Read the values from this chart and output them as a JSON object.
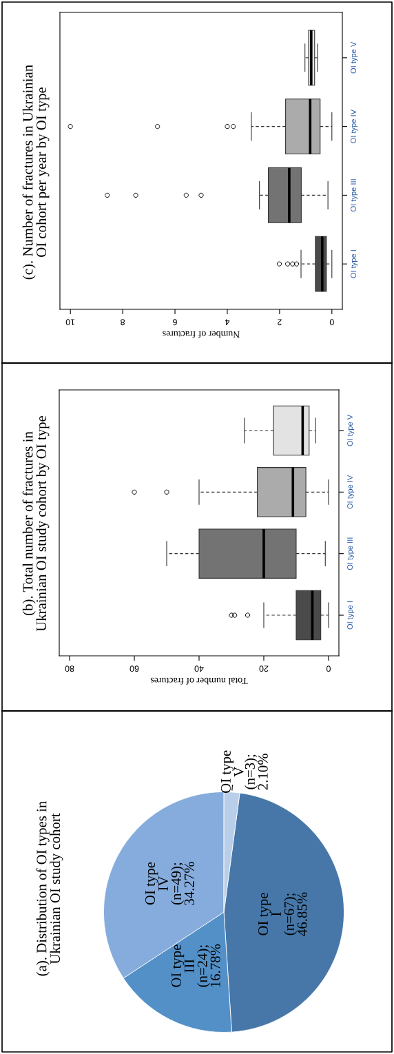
{
  "chart_data": [
    {
      "type": "pie",
      "title": "(a). Distribution of OI types in\nUkrainian OI study cohort",
      "categories": [
        "OI type\nI",
        "OI type\nIII",
        "OI type\nIV",
        "OI type\nV"
      ],
      "values": [
        46.85,
        16.78,
        34.27,
        2.1
      ],
      "value_labels": [
        "(n=67);\n46.85%",
        "(n=24);\n16.78%",
        "(n=49);\n34.27%",
        "(n=3);\n2.10%"
      ],
      "colors": [
        "#4677a8",
        "#5390c8",
        "#85acdc",
        "#b9cfe9"
      ]
    },
    {
      "type": "box",
      "orientation": "horizontal",
      "title": "(b). Total number of fractures in\nUkrainian OI study cohort by OI type",
      "xlabel": "Total number of fractures",
      "categories": [
        "OI type V",
        "OI type IV",
        "OI type III",
        "OI type I"
      ],
      "colors": [
        "#e3e3e3",
        "#ababab",
        "#737373",
        "#4a4a4a"
      ],
      "boxes": [
        {
          "low": 4,
          "q1": 6,
          "median": 8,
          "q3": 17,
          "high": 26
        },
        {
          "low": 0,
          "q1": 7,
          "median": 11,
          "q3": 22,
          "high": 40,
          "outliers": [
            50,
            60
          ]
        },
        {
          "low": 1,
          "q1": 10,
          "median": 20,
          "q3": 40,
          "high": 50
        },
        {
          "low": 0,
          "q1": 2.4,
          "median": 5,
          "q3": 10,
          "high": 20,
          "outliers": [
            25,
            29,
            30
          ]
        }
      ],
      "xlim": [
        83.2,
        -3.2
      ],
      "xticks": [
        0,
        20,
        40,
        60,
        80
      ]
    },
    {
      "type": "box",
      "orientation": "horizontal",
      "title": "(c). Number of fractures in Ukrainian\nOI cohort per year by OI type",
      "xlabel": "Number of fractures",
      "categories": [
        "OI type V",
        "OI type IV",
        "OI type III",
        "OI type I"
      ],
      "colors": [
        "#e3e3e3",
        "#ababab",
        "#737373",
        "#4a4a4a"
      ],
      "boxes": [
        {
          "low": 0.55,
          "q1": 0.66,
          "median": 0.79,
          "q3": 0.89,
          "high": 1.03
        },
        {
          "low": 0,
          "q1": 0.45,
          "median": 0.83,
          "q3": 1.77,
          "high": 3.08,
          "outliers": [
            3.77,
            4.0,
            6.67,
            10.0
          ]
        },
        {
          "low": 0.15,
          "q1": 1.17,
          "median": 1.63,
          "q3": 2.43,
          "high": 2.77,
          "outliers": [
            5.0,
            5.57,
            7.5,
            8.59
          ]
        },
        {
          "low": 0,
          "q1": 0.21,
          "median": 0.37,
          "q3": 0.63,
          "high": 1.18,
          "outliers": [
            1.35,
            1.5,
            1.69,
            2.01
          ]
        }
      ],
      "xlim": [
        10.4,
        -0.4
      ],
      "xticks": [
        0,
        2,
        4,
        6,
        8,
        10
      ]
    }
  ]
}
